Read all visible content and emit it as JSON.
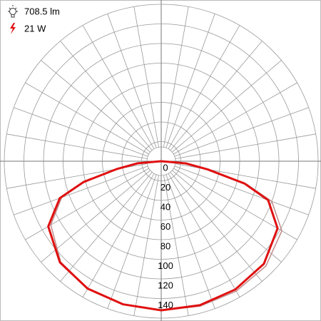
{
  "header": {
    "flux": "708.5 lm",
    "power": "21 W"
  },
  "chart_data": {
    "type": "polar",
    "x": [
      -90,
      -85,
      -80,
      -75,
      -70,
      -60,
      -45,
      -30,
      -15,
      0,
      15,
      30,
      45,
      60,
      70,
      75,
      80,
      85,
      90
    ],
    "series": [
      {
        "color": "#c08a8a",
        "values": [
          0,
          22,
          44,
          80,
          108,
          130,
          145,
          150,
          151,
          152,
          153,
          153,
          151,
          142,
          120,
          90,
          48,
          24,
          0
        ]
      },
      {
        "color": "#e01010",
        "values": [
          0,
          24,
          46,
          82,
          110,
          133,
          146,
          150,
          151,
          152,
          152,
          151,
          148,
          137,
          116,
          88,
          48,
          25,
          0
        ]
      }
    ],
    "ylim": [
      0,
      160
    ],
    "yticks": [
      0,
      20,
      40,
      60,
      80,
      100,
      120,
      140
    ],
    "grid": true
  }
}
